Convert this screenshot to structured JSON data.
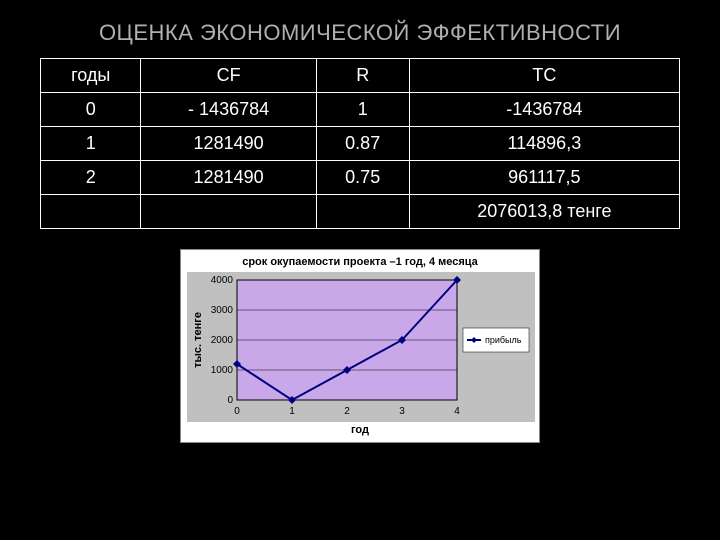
{
  "title": "ОЦЕНКА ЭКОНОМИЧЕСКОЙ ЭФФЕКТИВНОСТИ",
  "table": {
    "headers": [
      "годы",
      "CF",
      "R",
      "TC"
    ],
    "rows": [
      [
        "0",
        "- 1436784",
        "1",
        "-1436784"
      ],
      [
        "1",
        "1281490",
        "0.87",
        "114896,3"
      ],
      [
        "2",
        "1281490",
        "0.75",
        "961117,5"
      ],
      [
        "",
        "",
        "",
        "2076013,8 тенге"
      ]
    ]
  },
  "chart": {
    "type": "line",
    "title": "срок окупаемости проекта –1 год, 4 месяца",
    "xlabel": "год",
    "ylabel": "тыс. тенге",
    "legend_label": "прибыль",
    "x_values": [
      0,
      1,
      2,
      3,
      4
    ],
    "y_values": [
      1200,
      0,
      1000,
      2000,
      4000
    ],
    "xlim": [
      0,
      4
    ],
    "ylim": [
      0,
      4000
    ],
    "ytick_step": 1000,
    "xtick_step": 1,
    "plot_bg_color": "#c8a8e8",
    "outer_bg_color": "#c0c0c0",
    "line_color": "#000080",
    "marker_color": "#000080",
    "marker_size": 4,
    "line_width": 2,
    "grid_color": "#000000",
    "tick_fontsize": 10,
    "label_fontsize": 11,
    "title_fontsize": 11
  }
}
